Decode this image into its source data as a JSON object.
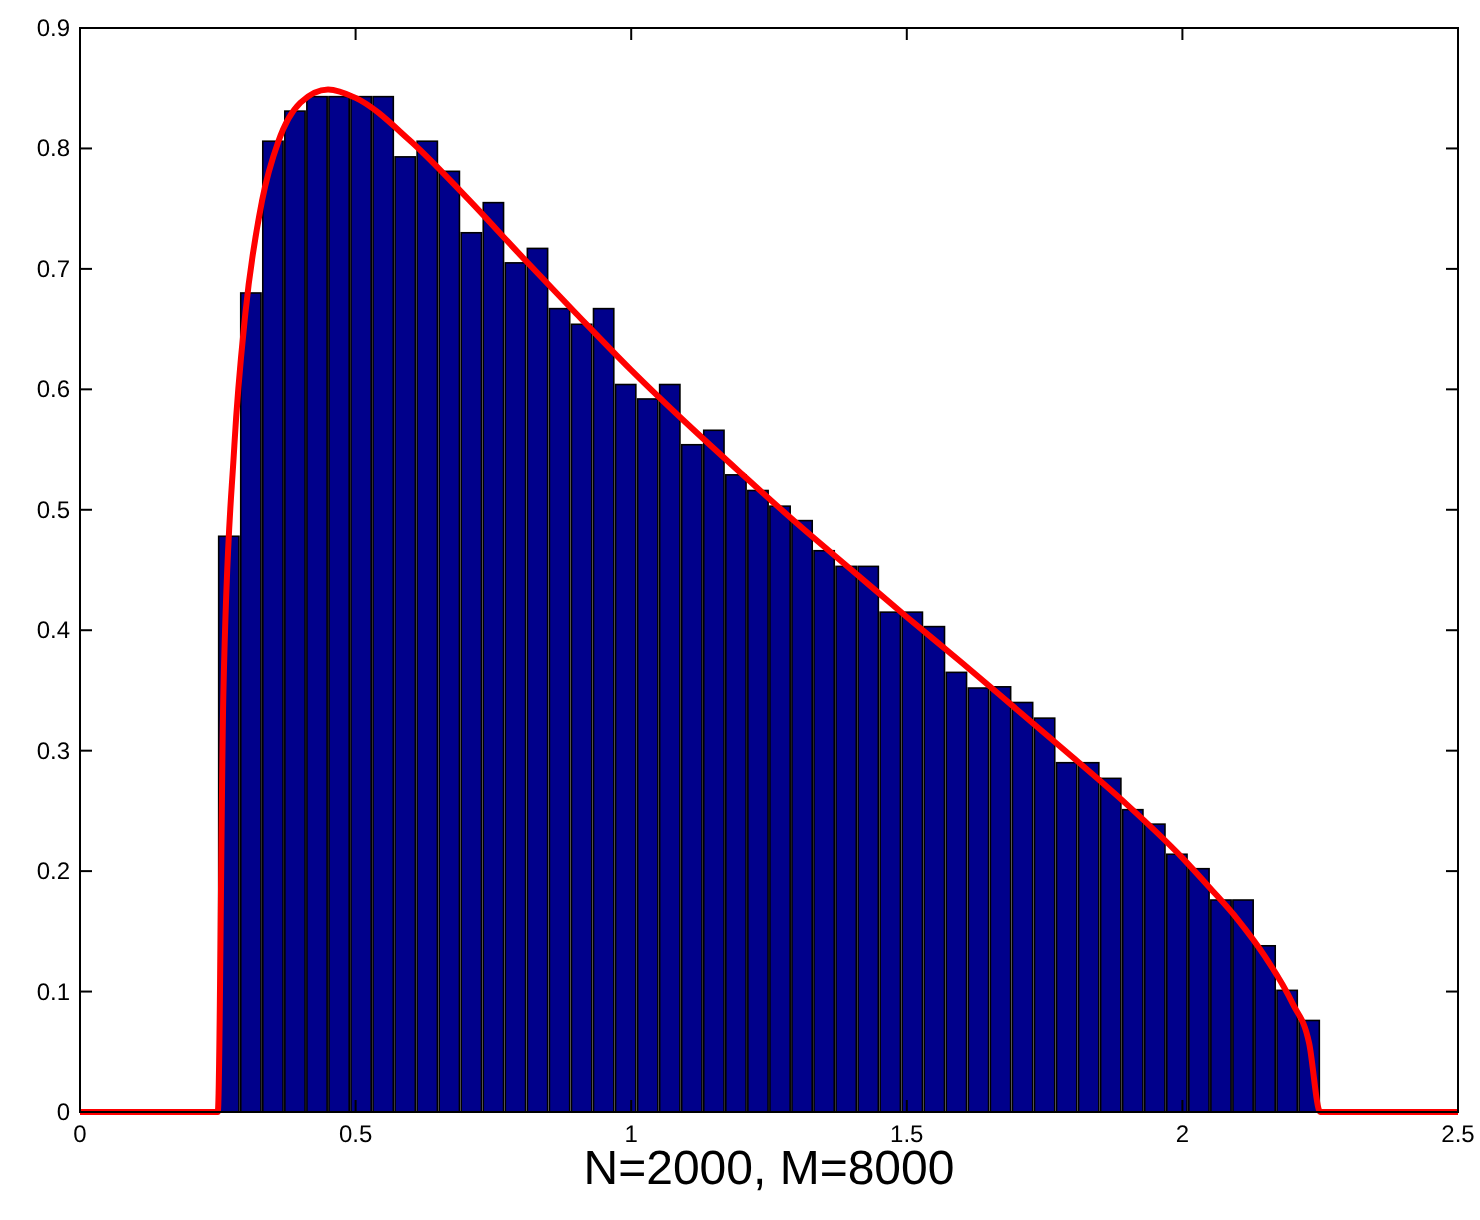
{
  "chart_data": {
    "type": "histogram",
    "xlabel": "N=2000, M=8000",
    "bins": [
      0.25,
      0.29,
      0.33,
      0.37,
      0.41,
      0.45,
      0.49,
      0.53,
      0.57,
      0.61,
      0.65,
      0.69,
      0.73,
      0.77,
      0.81,
      0.85,
      0.89,
      0.93,
      0.97,
      1.01,
      1.05,
      1.09,
      1.13,
      1.17,
      1.21,
      1.25,
      1.29,
      1.33,
      1.37,
      1.41,
      1.45,
      1.49,
      1.53,
      1.57,
      1.61,
      1.65,
      1.69,
      1.73,
      1.77,
      1.81,
      1.85,
      1.89,
      1.93,
      1.97,
      2.01,
      2.05,
      2.09,
      2.13,
      2.17,
      2.21,
      2.25
    ],
    "values": [
      0.478,
      0.68,
      0.806,
      0.831,
      0.843,
      0.843,
      0.843,
      0.843,
      0.793,
      0.806,
      0.781,
      0.73,
      0.755,
      0.705,
      0.717,
      0.667,
      0.654,
      0.667,
      0.604,
      0.592,
      0.604,
      0.554,
      0.566,
      0.529,
      0.516,
      0.503,
      0.491,
      0.466,
      0.453,
      0.453,
      0.415,
      0.415,
      0.403,
      0.365,
      0.352,
      0.353,
      0.34,
      0.327,
      0.29,
      0.29,
      0.277,
      0.251,
      0.239,
      0.214,
      0.202,
      0.176,
      0.176,
      0.138,
      0.101,
      0.076
    ],
    "color": "#00008b",
    "series": [
      {
        "type": "line",
        "color": "#ff0000",
        "x": [
          0,
          0.25,
          0.26,
          0.28,
          0.3,
          0.33,
          0.36,
          0.4,
          0.45,
          0.5,
          0.6,
          0.7,
          0.8,
          0.9,
          1.0,
          1.1,
          1.2,
          1.3,
          1.4,
          1.5,
          1.6,
          1.7,
          1.8,
          1.9,
          2.0,
          2.05,
          2.1,
          2.15,
          2.2,
          2.23,
          2.25,
          2.5
        ],
        "values": [
          0,
          0,
          0.345,
          0.553,
          0.663,
          0.756,
          0.806,
          0.838,
          0.849,
          0.842,
          0.806,
          0.76,
          0.711,
          0.663,
          0.616,
          0.572,
          0.53,
          0.489,
          0.45,
          0.411,
          0.373,
          0.334,
          0.295,
          0.255,
          0.211,
          0.186,
          0.16,
          0.129,
          0.09,
          0.057,
          0,
          0
        ]
      }
    ],
    "xlim": [
      0,
      2.5
    ],
    "xticks": [
      0,
      0.5,
      1,
      1.5,
      2,
      2.5
    ],
    "ylim": [
      0,
      0.9
    ],
    "yticks": [
      0,
      0.1,
      0.2,
      0.3,
      0.4,
      0.5,
      0.6,
      0.7,
      0.8,
      0.9
    ],
    "grid": false
  }
}
